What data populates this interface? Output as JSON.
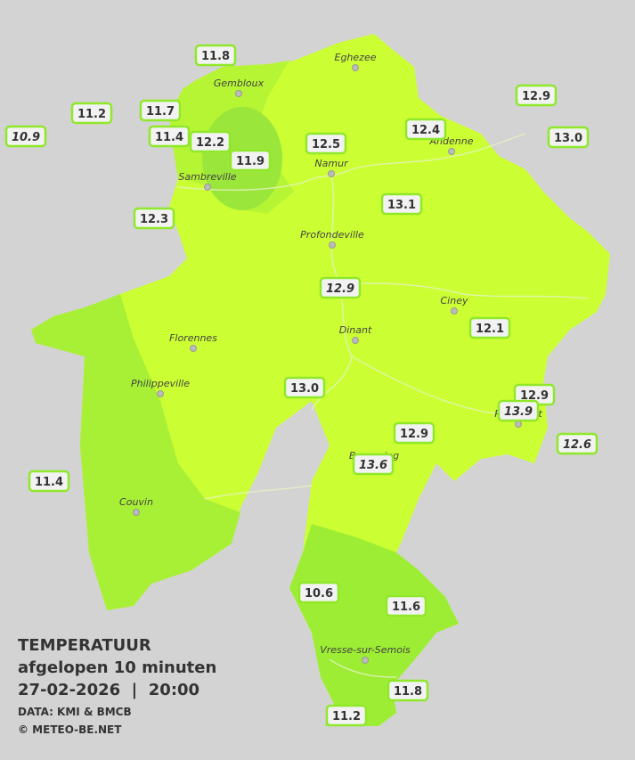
{
  "legend": {
    "title": "TEMPERATUUR",
    "period": "afgelopen 10 minuten",
    "datetime": "27-02-2026  |  20:00",
    "source": "DATA: KMI & BMCB",
    "copyright": "© METEO-BE.NET"
  },
  "cities": [
    "Eghezee",
    "Gembloux",
    "Andenne",
    "Namur",
    "Sambreville",
    "Profondeville",
    "Ciney",
    "Dinant",
    "Florennes",
    "Philippeville",
    "Rochefort",
    "Beauraing",
    "Couvin",
    "Vresse-sur-Semois"
  ],
  "stations": [
    "11.8",
    "11.2",
    "11.7",
    "10.9",
    "11.4",
    "12.2",
    "11.9",
    "12.5",
    "12.4",
    "12.9",
    "13.0",
    "12.3",
    "13.1",
    "12.9",
    "12.1",
    "13.0",
    "12.9",
    "13.9",
    "12.9",
    "12.6",
    "13.6",
    "11.4",
    "10.6",
    "11.6",
    "11.8",
    "11.2"
  ]
}
